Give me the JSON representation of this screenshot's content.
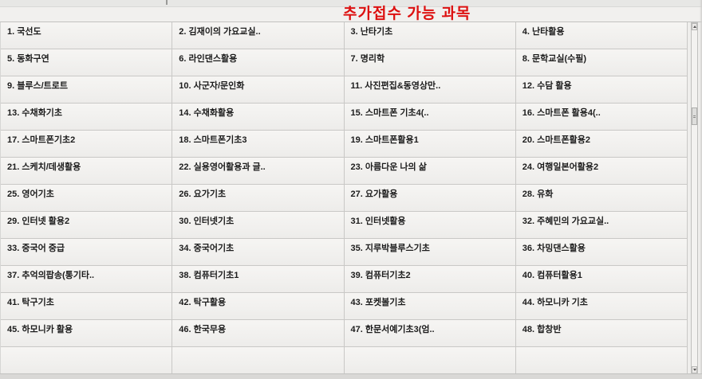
{
  "title": "추가접수 가능 과목",
  "colors": {
    "title_red": "#dd1111",
    "cell_background": "#f3f2f0",
    "grid_line": "#c9c8c6",
    "text": "#1c1c1c"
  },
  "courses": [
    {
      "num": "1.",
      "name": "국선도"
    },
    {
      "num": "2.",
      "name": "김재이의 가요교실.."
    },
    {
      "num": "3.",
      "name": "난타기초"
    },
    {
      "num": "4.",
      "name": "난타활용"
    },
    {
      "num": "5.",
      "name": "동화구연"
    },
    {
      "num": "6.",
      "name": "라인댄스활용"
    },
    {
      "num": "7.",
      "name": "명리학"
    },
    {
      "num": "8.",
      "name": "문학교실(수필)"
    },
    {
      "num": "9.",
      "name": "블루스/트로트"
    },
    {
      "num": "10.",
      "name": "사군자/문인화"
    },
    {
      "num": "11.",
      "name": "사진편집&동영상만.."
    },
    {
      "num": "12.",
      "name": "수담 활용"
    },
    {
      "num": "13.",
      "name": "수채화기초"
    },
    {
      "num": "14.",
      "name": "수채화활용"
    },
    {
      "num": "15.",
      "name": "스마트폰 기초4(.."
    },
    {
      "num": "16.",
      "name": "스마트폰 활용4(.."
    },
    {
      "num": "17.",
      "name": "스마트폰기초2"
    },
    {
      "num": "18.",
      "name": "스마트폰기초3"
    },
    {
      "num": "19.",
      "name": "스마트폰활용1"
    },
    {
      "num": "20.",
      "name": "스마트폰활용2"
    },
    {
      "num": "21.",
      "name": "스케치/데생활용"
    },
    {
      "num": "22.",
      "name": "실용영어활용과 글.."
    },
    {
      "num": "23.",
      "name": "아름다운 나의 삶"
    },
    {
      "num": "24.",
      "name": "여행일본어활용2"
    },
    {
      "num": "25.",
      "name": "영어기초"
    },
    {
      "num": "26.",
      "name": "요가기초"
    },
    {
      "num": "27.",
      "name": "요가활용"
    },
    {
      "num": "28.",
      "name": "유화"
    },
    {
      "num": "29.",
      "name": "인터넷 활용2"
    },
    {
      "num": "30.",
      "name": "인터넷기초"
    },
    {
      "num": "31.",
      "name": "인터넷활용"
    },
    {
      "num": "32.",
      "name": "주혜민의 가요교실.."
    },
    {
      "num": "33.",
      "name": "중국어 중급"
    },
    {
      "num": "34.",
      "name": "중국어기초"
    },
    {
      "num": "35.",
      "name": "지루박블루스기초"
    },
    {
      "num": "36.",
      "name": "차밍댄스활용"
    },
    {
      "num": "37.",
      "name": "추억의팝송(통기타.."
    },
    {
      "num": "38.",
      "name": "컴퓨터기초1"
    },
    {
      "num": "39.",
      "name": "컴퓨터기초2"
    },
    {
      "num": "40.",
      "name": "컴퓨터활용1"
    },
    {
      "num": "41.",
      "name": "탁구기초"
    },
    {
      "num": "42.",
      "name": "탁구활용"
    },
    {
      "num": "43.",
      "name": "포켓볼기초"
    },
    {
      "num": "44.",
      "name": "하모니카 기초"
    },
    {
      "num": "45.",
      "name": "하모니카 활용"
    },
    {
      "num": "46.",
      "name": "한국무용"
    },
    {
      "num": "47.",
      "name": "한문서예기초3(엄.."
    },
    {
      "num": "48.",
      "name": "합창반"
    }
  ]
}
